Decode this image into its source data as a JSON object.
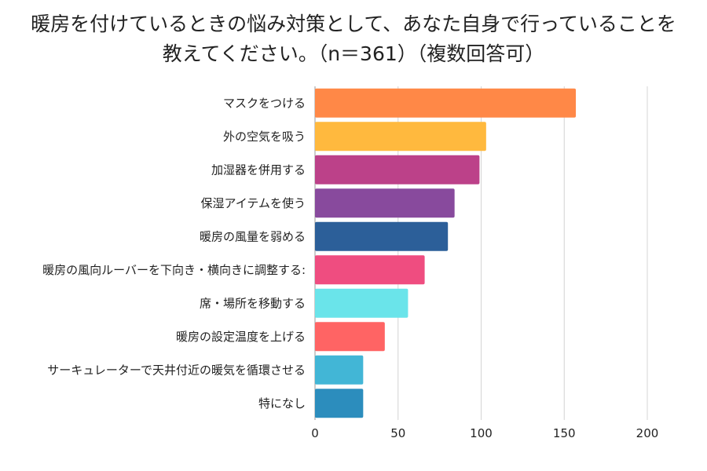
{
  "chart_data": {
    "type": "bar",
    "orientation": "horizontal",
    "title_lines": [
      "暖房を付けているときの悩み対策として、あなた自身で行っていることを",
      "教えてください。（n＝361）（複数回答可）"
    ],
    "categories": [
      "マスクをつける",
      "外の空気を吸う",
      "加湿器を併用する",
      "保湿アイテムを使う",
      "暖房の風量を弱める",
      "暖房の風向ルーバーを下向き・横向きに調整する:",
      "席・場所を移動する",
      "暖房の設定温度を上げる",
      "サーキュレーターで天井付近の暖気を循環させる",
      "特になし"
    ],
    "values": [
      157,
      103,
      99,
      84,
      80,
      66,
      56,
      42,
      29,
      29
    ],
    "colors": [
      "#FF8847",
      "#FFB93E",
      "#BC4189",
      "#884A9D",
      "#2C5F99",
      "#EF4D80",
      "#6AE4EA",
      "#FF6464",
      "#42B6D6",
      "#2C8DBD"
    ],
    "x_ticks": [
      "0",
      "50",
      "100",
      "150",
      "200"
    ],
    "xlim": [
      0,
      200
    ],
    "xlabel": "",
    "ylabel": "",
    "grid": true,
    "legend": "none"
  }
}
